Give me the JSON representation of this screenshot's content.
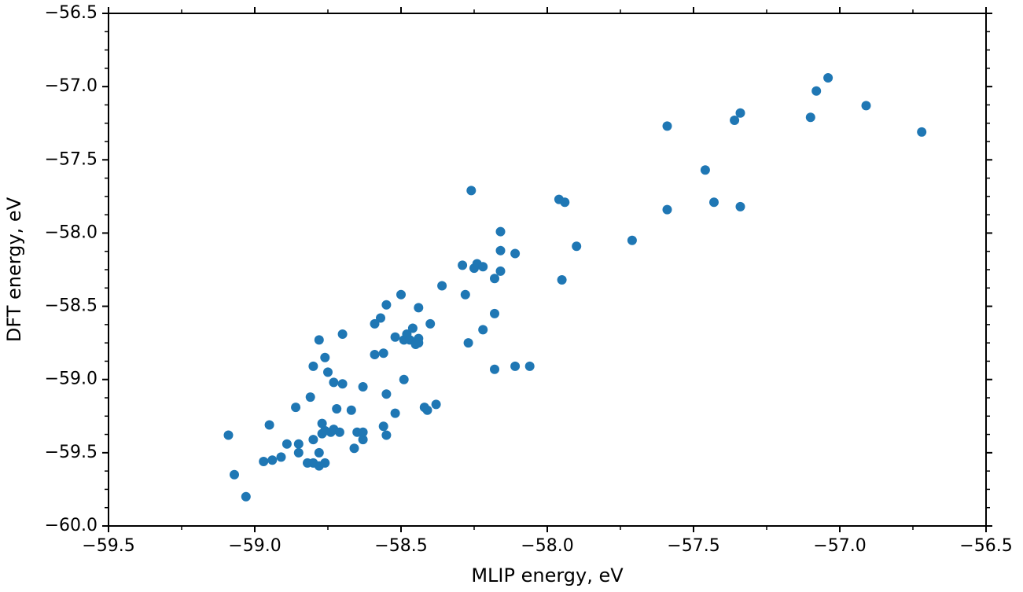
{
  "chart_data": {
    "type": "scatter",
    "title": "",
    "xlabel": "MLIP energy, eV",
    "ylabel": "DFT energy, eV",
    "xlim": [
      -59.5,
      -56.5
    ],
    "ylim": [
      -60.0,
      -56.5
    ],
    "xticks": [
      -59.5,
      -59.0,
      -58.5,
      -58.0,
      -57.5,
      -57.0,
      -56.5
    ],
    "xtick_labels": [
      "−59.5",
      "−59.0",
      "−58.5",
      "−58.0",
      "−57.5",
      "−57.0",
      "−56.5"
    ],
    "yticks": [
      -60.0,
      -59.5,
      -59.0,
      -58.5,
      -58.0,
      -57.5,
      -57.0,
      -56.5
    ],
    "ytick_labels": [
      "−60.0",
      "−59.5",
      "−59.0",
      "−58.5",
      "−58.0",
      "−57.5",
      "−57.0",
      "−56.5"
    ],
    "grid": false,
    "marker_color": "#1f77b4",
    "series": [
      {
        "points": [
          [
            -59.09,
            -59.38
          ],
          [
            -59.07,
            -59.65
          ],
          [
            -59.03,
            -59.8
          ],
          [
            -58.97,
            -59.56
          ],
          [
            -58.95,
            -59.31
          ],
          [
            -58.94,
            -59.55
          ],
          [
            -58.91,
            -59.53
          ],
          [
            -58.89,
            -59.44
          ],
          [
            -58.86,
            -59.19
          ],
          [
            -58.85,
            -59.44
          ],
          [
            -58.85,
            -59.5
          ],
          [
            -58.82,
            -59.57
          ],
          [
            -58.81,
            -59.12
          ],
          [
            -58.8,
            -59.57
          ],
          [
            -58.8,
            -59.41
          ],
          [
            -58.8,
            -58.91
          ],
          [
            -58.78,
            -59.59
          ],
          [
            -58.78,
            -59.5
          ],
          [
            -58.78,
            -58.73
          ],
          [
            -58.77,
            -59.37
          ],
          [
            -58.77,
            -59.3
          ],
          [
            -58.76,
            -59.57
          ],
          [
            -58.76,
            -59.35
          ],
          [
            -58.76,
            -58.85
          ],
          [
            -58.75,
            -58.95
          ],
          [
            -58.74,
            -59.36
          ],
          [
            -58.73,
            -59.34
          ],
          [
            -58.73,
            -59.02
          ],
          [
            -58.72,
            -59.2
          ],
          [
            -58.71,
            -59.36
          ],
          [
            -58.7,
            -59.03
          ],
          [
            -58.7,
            -58.69
          ],
          [
            -58.67,
            -59.21
          ],
          [
            -58.66,
            -59.47
          ],
          [
            -58.65,
            -59.36
          ],
          [
            -58.63,
            -59.41
          ],
          [
            -58.63,
            -59.36
          ],
          [
            -58.63,
            -59.05
          ],
          [
            -58.59,
            -58.83
          ],
          [
            -58.59,
            -58.62
          ],
          [
            -58.57,
            -58.58
          ],
          [
            -58.56,
            -59.32
          ],
          [
            -58.56,
            -58.82
          ],
          [
            -58.55,
            -59.1
          ],
          [
            -58.55,
            -59.38
          ],
          [
            -58.55,
            -58.49
          ],
          [
            -58.52,
            -59.23
          ],
          [
            -58.52,
            -58.71
          ],
          [
            -58.5,
            -58.42
          ],
          [
            -58.49,
            -58.73
          ],
          [
            -58.49,
            -59.0
          ],
          [
            -58.48,
            -58.69
          ],
          [
            -58.47,
            -58.73
          ],
          [
            -58.46,
            -58.65
          ],
          [
            -58.45,
            -58.76
          ],
          [
            -58.44,
            -58.51
          ],
          [
            -58.44,
            -58.72
          ],
          [
            -58.44,
            -58.75
          ],
          [
            -58.42,
            -59.19
          ],
          [
            -58.41,
            -59.21
          ],
          [
            -58.4,
            -58.62
          ],
          [
            -58.38,
            -59.17
          ],
          [
            -58.36,
            -58.36
          ],
          [
            -58.29,
            -58.22
          ],
          [
            -58.28,
            -58.42
          ],
          [
            -58.27,
            -58.75
          ],
          [
            -58.26,
            -57.71
          ],
          [
            -58.25,
            -58.24
          ],
          [
            -58.24,
            -58.21
          ],
          [
            -58.22,
            -58.23
          ],
          [
            -58.22,
            -58.66
          ],
          [
            -58.18,
            -58.93
          ],
          [
            -58.18,
            -58.31
          ],
          [
            -58.18,
            -58.55
          ],
          [
            -58.16,
            -57.99
          ],
          [
            -58.16,
            -58.12
          ],
          [
            -58.16,
            -58.26
          ],
          [
            -58.11,
            -58.14
          ],
          [
            -58.11,
            -58.91
          ],
          [
            -58.06,
            -58.91
          ],
          [
            -57.96,
            -57.77
          ],
          [
            -57.95,
            -58.32
          ],
          [
            -57.94,
            -57.79
          ],
          [
            -57.9,
            -58.09
          ],
          [
            -57.71,
            -58.05
          ],
          [
            -57.59,
            -57.27
          ],
          [
            -57.59,
            -57.84
          ],
          [
            -57.46,
            -57.57
          ],
          [
            -57.43,
            -57.79
          ],
          [
            -57.36,
            -57.23
          ],
          [
            -57.34,
            -57.18
          ],
          [
            -57.34,
            -57.82
          ],
          [
            -57.1,
            -57.21
          ],
          [
            -57.08,
            -57.03
          ],
          [
            -57.04,
            -56.94
          ],
          [
            -56.91,
            -57.13
          ],
          [
            -56.72,
            -57.31
          ]
        ]
      }
    ]
  }
}
